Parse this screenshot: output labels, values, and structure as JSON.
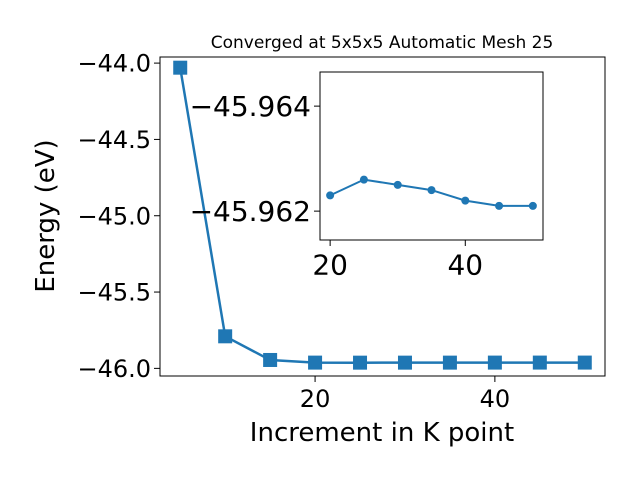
{
  "chart_data": [
    {
      "type": "line",
      "title": "Converged at 5x5x5 Automatic Mesh 25",
      "xlabel": "Increment in K point",
      "ylabel": "Energy (eV)",
      "x": [
        5,
        10,
        15,
        20,
        25,
        30,
        35,
        40,
        45,
        50
      ],
      "values": [
        -44.03,
        -45.79,
        -45.945,
        -45.9623,
        -45.9626,
        -45.9625,
        -45.9624,
        -45.9622,
        -45.9621,
        -45.9621
      ],
      "xlim": [
        2.75,
        52.25
      ],
      "ylim": [
        -46.05,
        -43.96
      ],
      "xticks": [
        20,
        40
      ],
      "xtick_labels": [
        "20",
        "40"
      ],
      "yticks": [
        -46.0,
        -45.5,
        -45.0,
        -44.5,
        -44.0
      ],
      "ytick_labels": [
        "−46.0",
        "−45.5",
        "−45.0",
        "−44.5",
        "−44.0"
      ],
      "marker": "square",
      "color": "#1f77b4",
      "grid": false
    },
    {
      "type": "line",
      "title": "",
      "xlabel": "",
      "ylabel": "",
      "x": [
        20,
        25,
        30,
        35,
        40,
        45,
        50
      ],
      "values": [
        -45.9623,
        -45.9626,
        -45.9625,
        -45.9624,
        -45.9622,
        -45.9621,
        -45.9621
      ],
      "xlim": [
        18.5,
        51.5
      ],
      "ylim": [
        -45.96145,
        -45.96465
      ],
      "xticks": [
        20,
        40
      ],
      "xtick_labels": [
        "20",
        "40"
      ],
      "yticks": [
        -45.962,
        -45.964
      ],
      "ytick_labels": [
        "−45.962",
        "−45.964"
      ],
      "marker": "circle",
      "color": "#1f77b4",
      "grid": false,
      "placement": "inset"
    }
  ]
}
